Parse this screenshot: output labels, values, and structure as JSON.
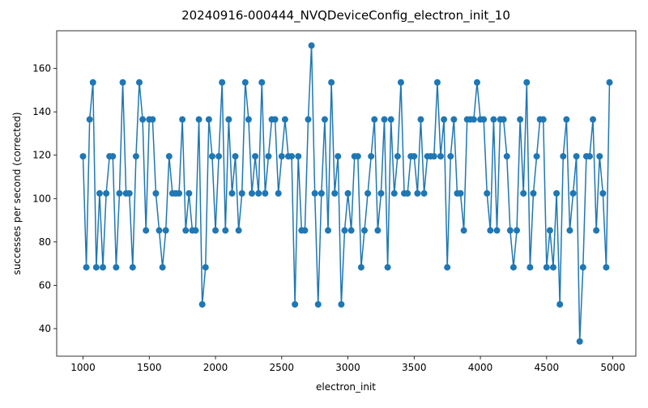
{
  "chart_data": {
    "type": "line",
    "title": "20240916-000444_NVQDeviceConfig_electron_init_10",
    "x_label": "electron_init",
    "y_label": "successes per second (corrected)",
    "x": [
      1000,
      1025,
      1050,
      1075,
      1100,
      1125,
      1150,
      1175,
      1200,
      1225,
      1250,
      1275,
      1300,
      1325,
      1350,
      1375,
      1400,
      1425,
      1450,
      1475,
      1500,
      1525,
      1550,
      1575,
      1600,
      1625,
      1650,
      1675,
      1700,
      1725,
      1750,
      1775,
      1800,
      1825,
      1850,
      1875,
      1900,
      1925,
      1950,
      1975,
      2000,
      2025,
      2050,
      2075,
      2100,
      2125,
      2150,
      2175,
      2200,
      2225,
      2250,
      2275,
      2300,
      2325,
      2350,
      2375,
      2400,
      2425,
      2450,
      2475,
      2500,
      2525,
      2550,
      2575,
      2600,
      2625,
      2650,
      2675,
      2700,
      2725,
      2750,
      2775,
      2800,
      2825,
      2850,
      2875,
      2900,
      2925,
      2950,
      2975,
      3000,
      3025,
      3050,
      3075,
      3100,
      3125,
      3150,
      3175,
      3200,
      3225,
      3250,
      3275,
      3300,
      3325,
      3350,
      3375,
      3400,
      3425,
      3450,
      3475,
      3500,
      3525,
      3550,
      3575,
      3600,
      3625,
      3650,
      3675,
      3700,
      3725,
      3750,
      3775,
      3800,
      3825,
      3850,
      3875,
      3900,
      3925,
      3950,
      3975,
      4000,
      4025,
      4050,
      4075,
      4100,
      4125,
      4150,
      4175,
      4200,
      4225,
      4250,
      4275,
      4300,
      4325,
      4350,
      4375,
      4400,
      4425,
      4450,
      4475,
      4500,
      4525,
      4550,
      4575,
      4600,
      4625,
      4650,
      4675,
      4700,
      4725,
      4750,
      4775,
      4800,
      4825,
      4850,
      4875,
      4900,
      4925,
      4950,
      4975
    ],
    "series": [
      {
        "color": "#1f77b4",
        "values": [
          119.5,
          68.3,
          136.5,
          153.6,
          68.3,
          102.4,
          68.3,
          102.4,
          119.5,
          119.5,
          68.3,
          102.4,
          153.6,
          102.4,
          102.4,
          68.3,
          119.5,
          153.6,
          136.5,
          85.3,
          136.5,
          136.5,
          102.4,
          85.3,
          68.3,
          85.3,
          119.5,
          102.4,
          102.4,
          102.4,
          136.5,
          85.3,
          102.4,
          85.3,
          85.3,
          136.5,
          51.2,
          68.3,
          136.5,
          119.5,
          85.3,
          119.5,
          153.6,
          85.3,
          136.5,
          102.4,
          119.5,
          85.3,
          102.4,
          153.6,
          136.5,
          102.4,
          119.5,
          102.4,
          153.6,
          102.4,
          119.5,
          136.5,
          136.5,
          102.4,
          119.5,
          136.5,
          119.5,
          119.5,
          51.2,
          119.5,
          85.3,
          85.3,
          136.5,
          170.6,
          102.4,
          51.2,
          102.4,
          136.5,
          85.3,
          153.6,
          102.4,
          119.5,
          51.2,
          85.3,
          102.4,
          85.3,
          119.5,
          119.5,
          68.3,
          85.3,
          102.4,
          119.5,
          136.5,
          85.3,
          102.4,
          136.5,
          68.3,
          136.5,
          102.4,
          119.5,
          153.6,
          102.4,
          102.4,
          119.5,
          119.5,
          102.4,
          136.5,
          102.4,
          119.5,
          119.5,
          119.5,
          153.6,
          119.5,
          136.5,
          68.3,
          119.5,
          136.5,
          102.4,
          102.4,
          85.3,
          136.5,
          136.5,
          136.5,
          153.6,
          136.5,
          136.5,
          102.4,
          85.3,
          136.5,
          85.3,
          136.5,
          136.5,
          119.5,
          85.3,
          68.3,
          85.3,
          136.5,
          102.4,
          153.6,
          68.3,
          102.4,
          119.5,
          136.5,
          136.5,
          68.3,
          85.3,
          68.3,
          102.4,
          51.2,
          119.5,
          136.5,
          85.3,
          102.4,
          119.5,
          34.1,
          68.3,
          119.5,
          119.5,
          136.5,
          85.3,
          119.5,
          102.4,
          68.3,
          153.6
        ]
      }
    ],
    "xlim": [
      801.25,
      5173.75
    ],
    "ylim": [
      27.3,
      177.4
    ],
    "xticks": [
      1000,
      1500,
      2000,
      2500,
      3000,
      3500,
      4000,
      4500,
      5000
    ],
    "yticks": [
      40,
      60,
      80,
      100,
      120,
      140,
      160
    ]
  }
}
